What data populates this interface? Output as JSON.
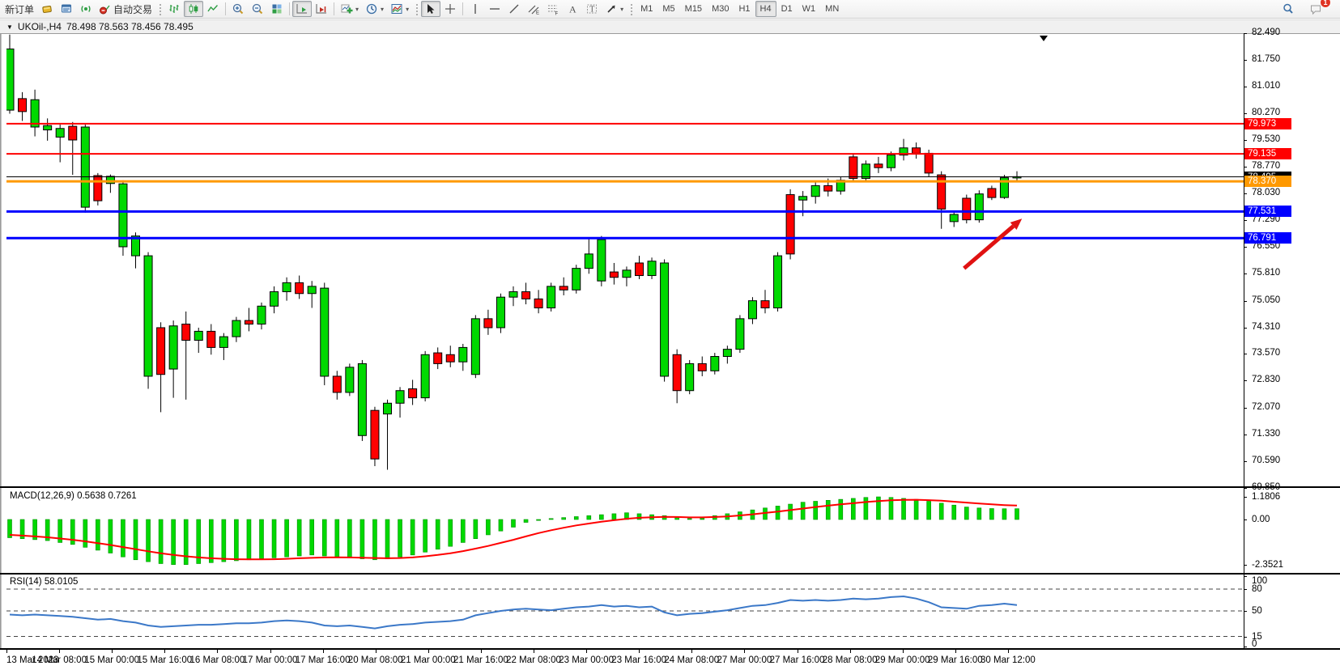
{
  "toolbar": {
    "new_order_label": "新订单",
    "auto_trading_label": "自动交易",
    "timeframes": [
      "M1",
      "M5",
      "M15",
      "M30",
      "H1",
      "H4",
      "D1",
      "W1",
      "MN"
    ],
    "active_timeframe": "H4",
    "notification_count": "1",
    "icon_names": [
      "new-chart-icon",
      "market-watch-icon",
      "signals-icon",
      "auto-trading-icon",
      "bar-chart-icon",
      "candlestick-chart-icon",
      "line-chart-icon",
      "zoom-in-icon",
      "zoom-out-icon",
      "tile-windows-icon",
      "auto-scroll-icon",
      "chart-shift-icon",
      "indicators-icon",
      "periods-icon",
      "templates-icon",
      "cursor-icon",
      "crosshair-icon",
      "vertical-line-icon",
      "horizontal-line-icon",
      "trendline-icon",
      "equidistant-channel-icon",
      "fibonacci-icon",
      "text-icon",
      "text-label-icon",
      "arrows-icon",
      "search-icon",
      "chat-icon"
    ]
  },
  "title_bar": {
    "collapse_icon": "▼",
    "symbol_period": "UKOil-,H4",
    "ohlc_values": "78.498 78.563 78.456 78.495"
  },
  "indicators": {
    "macd_label": "MACD(12,26,9) 0.5638 0.7261",
    "rsi_label": "RSI(14) 58.0105"
  },
  "colors": {
    "bull_candle": "#00d900",
    "bear_candle": "#ff0000",
    "outline": "#000000",
    "macd_histogram": "#00d900",
    "macd_signal": "#ff0000",
    "rsi_line": "#3b78c8",
    "resistance_line": "#ff0000",
    "support_line": "#0000ff",
    "pivot_line": "#ff9900",
    "current_price_line": "#000000",
    "arrow_annotation": "#e01212"
  },
  "chart_data": {
    "type": "candlestick",
    "symbol": "UKOil-",
    "timeframe": "H4",
    "ohlc_display": {
      "open": "78.498",
      "high": "78.563",
      "low": "78.456",
      "close": "78.495"
    },
    "visible_price_range": [
      69.85,
      82.49
    ],
    "grid": false,
    "price_axis_ticks": [
      "82.490",
      "81.750",
      "81.010",
      "80.270",
      "79.530",
      "78.770",
      "78.030",
      "77.290",
      "76.550",
      "75.810",
      "75.050",
      "74.310",
      "73.570",
      "72.830",
      "72.070",
      "71.330",
      "70.590",
      "69.850"
    ],
    "time_axis_labels": [
      "13 Mar 2023",
      "14 Mar 08:00",
      "15 Mar 00:00",
      "15 Mar 16:00",
      "16 Mar 08:00",
      "17 Mar 00:00",
      "17 Mar 16:00",
      "20 Mar 08:00",
      "21 Mar 00:00",
      "21 Mar 16:00",
      "22 Mar 08:00",
      "23 Mar 00:00",
      "23 Mar 16:00",
      "24 Mar 08:00",
      "27 Mar 00:00",
      "27 Mar 16:00",
      "28 Mar 08:00",
      "29 Mar 00:00",
      "29 Mar 16:00",
      "30 Mar 12:00"
    ],
    "horizontal_lines": [
      {
        "value": 79.973,
        "label": "79.973",
        "color": "#ff0000",
        "thickness": 2
      },
      {
        "value": 79.135,
        "label": "79.135",
        "color": "#ff0000",
        "thickness": 2
      },
      {
        "value": 78.37,
        "label": "78.370",
        "color": "#ff9900",
        "thickness": 3
      },
      {
        "value": 77.531,
        "label": "77.531",
        "color": "#0000ff",
        "thickness": 3
      },
      {
        "value": 76.791,
        "label": "76.791",
        "color": "#0000ff",
        "thickness": 3
      }
    ],
    "current_price_marker": {
      "value": 78.495,
      "label": "78.495",
      "color": "#000000"
    },
    "candles_ohlc": [
      [
        80.35,
        82.45,
        80.25,
        82.05
      ],
      [
        80.67,
        80.85,
        80.05,
        80.31
      ],
      [
        79.88,
        80.92,
        79.62,
        80.64
      ],
      [
        79.8,
        80.12,
        79.5,
        79.92
      ],
      [
        79.6,
        79.95,
        78.9,
        79.84
      ],
      [
        79.9,
        80.02,
        78.55,
        79.52
      ],
      [
        77.65,
        79.95,
        77.5,
        79.88
      ],
      [
        78.53,
        78.6,
        77.7,
        77.83
      ],
      [
        78.31,
        78.56,
        78.05,
        78.51
      ],
      [
        76.55,
        78.4,
        76.3,
        78.3
      ],
      [
        76.3,
        76.95,
        75.95,
        76.85
      ],
      [
        72.95,
        76.4,
        72.6,
        76.3
      ],
      [
        74.3,
        74.45,
        71.95,
        73.0
      ],
      [
        73.15,
        74.5,
        72.35,
        74.35
      ],
      [
        74.4,
        74.75,
        72.3,
        73.95
      ],
      [
        73.95,
        74.3,
        73.6,
        74.2
      ],
      [
        74.2,
        74.4,
        73.55,
        73.75
      ],
      [
        73.75,
        74.15,
        73.4,
        74.05
      ],
      [
        74.05,
        74.6,
        73.9,
        74.5
      ],
      [
        74.5,
        74.85,
        74.2,
        74.4
      ],
      [
        74.4,
        75.0,
        74.25,
        74.9
      ],
      [
        74.9,
        75.45,
        74.7,
        75.3
      ],
      [
        75.3,
        75.7,
        75.05,
        75.55
      ],
      [
        75.55,
        75.75,
        75.1,
        75.25
      ],
      [
        75.25,
        75.6,
        74.85,
        75.45
      ],
      [
        72.95,
        75.55,
        72.7,
        75.4
      ],
      [
        72.95,
        73.1,
        72.3,
        72.5
      ],
      [
        72.5,
        73.3,
        72.4,
        73.2
      ],
      [
        71.3,
        73.4,
        71.15,
        73.3
      ],
      [
        72.0,
        72.1,
        70.45,
        70.65
      ],
      [
        71.9,
        72.3,
        70.35,
        72.2
      ],
      [
        72.2,
        72.65,
        71.8,
        72.55
      ],
      [
        72.6,
        72.85,
        72.15,
        72.35
      ],
      [
        72.35,
        73.65,
        72.25,
        73.55
      ],
      [
        73.6,
        73.75,
        73.15,
        73.3
      ],
      [
        73.55,
        73.8,
        73.2,
        73.35
      ],
      [
        73.35,
        73.85,
        73.1,
        73.75
      ],
      [
        73.0,
        74.65,
        72.9,
        74.55
      ],
      [
        74.55,
        74.8,
        74.1,
        74.3
      ],
      [
        74.3,
        75.25,
        74.15,
        75.15
      ],
      [
        75.15,
        75.45,
        74.9,
        75.3
      ],
      [
        75.3,
        75.55,
        74.95,
        75.1
      ],
      [
        75.1,
        75.35,
        74.7,
        74.85
      ],
      [
        74.85,
        75.55,
        74.75,
        75.45
      ],
      [
        75.45,
        75.7,
        75.2,
        75.35
      ],
      [
        75.35,
        76.05,
        75.25,
        75.95
      ],
      [
        75.95,
        76.8,
        75.8,
        76.35
      ],
      [
        75.6,
        76.85,
        75.45,
        76.75
      ],
      [
        75.85,
        76.1,
        75.5,
        75.7
      ],
      [
        75.7,
        76.0,
        75.45,
        75.9
      ],
      [
        76.1,
        76.3,
        75.65,
        75.75
      ],
      [
        75.75,
        76.25,
        75.65,
        76.15
      ],
      [
        72.95,
        76.2,
        72.8,
        76.1
      ],
      [
        73.55,
        73.7,
        72.2,
        72.55
      ],
      [
        72.55,
        73.4,
        72.45,
        73.3
      ],
      [
        73.3,
        73.5,
        72.95,
        73.1
      ],
      [
        73.1,
        73.6,
        73.0,
        73.5
      ],
      [
        73.5,
        73.8,
        73.3,
        73.7
      ],
      [
        73.7,
        74.65,
        73.6,
        74.55
      ],
      [
        74.55,
        75.15,
        74.4,
        75.05
      ],
      [
        75.05,
        75.35,
        74.7,
        74.85
      ],
      [
        74.85,
        76.4,
        74.75,
        76.3
      ],
      [
        78.0,
        78.15,
        76.2,
        76.35
      ],
      [
        77.85,
        78.1,
        77.4,
        77.95
      ],
      [
        77.95,
        78.35,
        77.75,
        78.25
      ],
      [
        78.25,
        78.45,
        77.95,
        78.1
      ],
      [
        78.1,
        78.5,
        78.0,
        78.4
      ],
      [
        79.05,
        79.15,
        78.35,
        78.45
      ],
      [
        78.45,
        78.95,
        78.35,
        78.85
      ],
      [
        78.85,
        79.05,
        78.6,
        78.75
      ],
      [
        78.75,
        79.2,
        78.65,
        79.1
      ],
      [
        79.1,
        79.55,
        78.95,
        79.3
      ],
      [
        79.3,
        79.45,
        79.0,
        79.15
      ],
      [
        79.15,
        79.25,
        78.5,
        78.6
      ],
      [
        78.55,
        78.65,
        77.05,
        77.6
      ],
      [
        77.25,
        77.55,
        77.1,
        77.45
      ],
      [
        77.9,
        78.0,
        77.2,
        77.3
      ],
      [
        77.3,
        78.12,
        77.22,
        78.02
      ],
      [
        78.17,
        78.25,
        77.85,
        77.92
      ],
      [
        77.92,
        78.55,
        77.88,
        78.47
      ],
      [
        78.47,
        78.65,
        78.35,
        78.5
      ]
    ],
    "macd": {
      "params": "12,26,9",
      "current_values": [
        0.5638,
        0.7261
      ],
      "axis_ticks": [
        {
          "label": "1.1806",
          "value": 1.1806
        },
        {
          "label": "0.00",
          "value": 0
        },
        {
          "label": "-2.3521",
          "value": -2.3521
        }
      ],
      "range": [
        -2.3521,
        1.1806
      ],
      "histogram": [
        -0.95,
        -1.0,
        -1.05,
        -1.1,
        -1.2,
        -1.3,
        -1.45,
        -1.6,
        -1.75,
        -1.95,
        -2.1,
        -2.2,
        -2.3,
        -2.35,
        -2.35,
        -2.3,
        -2.25,
        -2.2,
        -2.15,
        -2.1,
        -2.05,
        -2.0,
        -1.95,
        -1.9,
        -1.85,
        -1.9,
        -1.95,
        -2.0,
        -2.05,
        -2.1,
        -2.05,
        -1.95,
        -1.85,
        -1.7,
        -1.55,
        -1.4,
        -1.2,
        -1.0,
        -0.8,
        -0.6,
        -0.4,
        -0.15,
        -0.05,
        0.05,
        0.1,
        0.15,
        0.2,
        0.25,
        0.3,
        0.35,
        0.3,
        0.25,
        0.2,
        0.1,
        0.05,
        0.1,
        0.2,
        0.3,
        0.4,
        0.5,
        0.6,
        0.7,
        0.8,
        0.9,
        0.95,
        1.0,
        1.05,
        1.1,
        1.15,
        1.18,
        1.15,
        1.1,
        1.05,
        0.95,
        0.85,
        0.75,
        0.65,
        0.6,
        0.57,
        0.56,
        0.5638
      ],
      "signal": [
        -0.8,
        -0.84,
        -0.88,
        -0.93,
        -0.99,
        -1.06,
        -1.14,
        -1.23,
        -1.33,
        -1.44,
        -1.55,
        -1.66,
        -1.76,
        -1.85,
        -1.92,
        -1.98,
        -2.02,
        -2.05,
        -2.07,
        -2.08,
        -2.08,
        -2.07,
        -2.05,
        -2.02,
        -2.0,
        -1.98,
        -1.97,
        -1.98,
        -1.99,
        -2.01,
        -2.02,
        -2.01,
        -1.98,
        -1.92,
        -1.85,
        -1.76,
        -1.65,
        -1.52,
        -1.38,
        -1.22,
        -1.06,
        -0.88,
        -0.71,
        -0.56,
        -0.43,
        -0.31,
        -0.21,
        -0.12,
        -0.04,
        0.04,
        0.09,
        0.12,
        0.14,
        0.13,
        0.11,
        0.11,
        0.13,
        0.16,
        0.21,
        0.27,
        0.34,
        0.41,
        0.49,
        0.57,
        0.65,
        0.72,
        0.79,
        0.85,
        0.91,
        0.96,
        1.0,
        1.02,
        1.03,
        1.01,
        0.98,
        0.93,
        0.88,
        0.83,
        0.79,
        0.75,
        0.7261
      ]
    },
    "rsi": {
      "period": "14",
      "current_value": 58.0105,
      "axis_ticks": [
        {
          "label": "100",
          "value": 100
        },
        {
          "label": "80",
          "value": 80
        },
        {
          "label": "50",
          "value": 50
        },
        {
          "label": "15",
          "value": 15
        },
        {
          "label": "0",
          "value": 0
        }
      ],
      "dashed_levels": [
        80,
        50,
        15
      ],
      "range": [
        0,
        100
      ],
      "values": [
        45,
        44,
        45,
        44,
        43,
        42,
        40,
        38,
        39,
        36,
        34,
        30,
        28,
        29,
        30,
        31,
        31,
        32,
        33,
        33,
        34,
        36,
        37,
        36,
        34,
        30,
        29,
        30,
        28,
        26,
        29,
        31,
        32,
        34,
        35,
        36,
        38,
        44,
        47,
        50,
        52,
        53,
        52,
        51,
        53,
        55,
        56,
        58,
        56,
        57,
        55,
        56,
        48,
        44,
        46,
        47,
        49,
        51,
        54,
        57,
        58,
        61,
        65,
        64,
        65,
        64,
        65,
        67,
        66,
        67,
        69,
        70,
        67,
        62,
        55,
        54,
        53,
        57,
        58,
        60,
        58.01
      ]
    },
    "annotation_arrow": {
      "from_bar": 75.8,
      "from_price": 75.95,
      "to_bar": 80.4,
      "to_price": 77.33,
      "color": "#e01212"
    }
  }
}
